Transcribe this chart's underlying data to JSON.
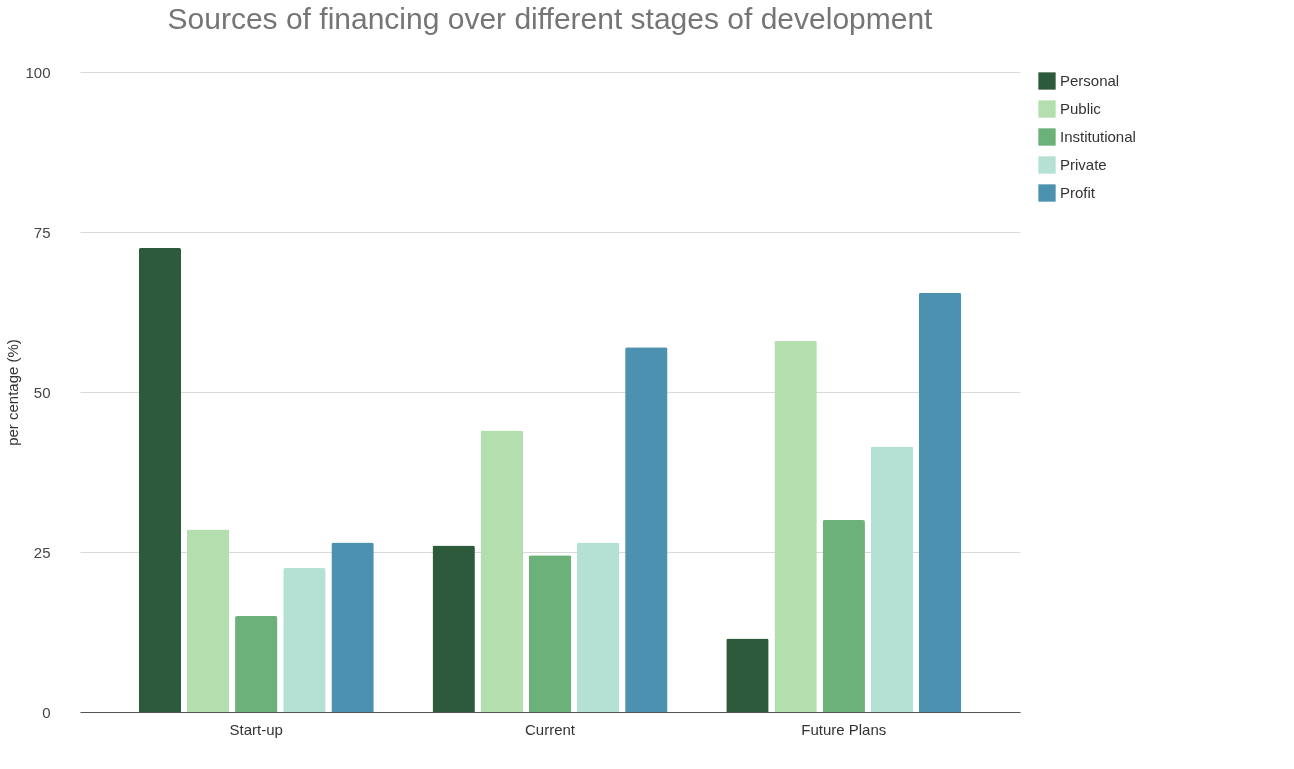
{
  "chart_data": {
    "type": "bar",
    "title": "Sources of financing over different stages of development",
    "ylabel": "per centage (%)",
    "categories": [
      "Start-up",
      "Current",
      "Future Plans"
    ],
    "series": [
      {
        "name": "Personal",
        "color": "#2d5a3a",
        "values": [
          72.5,
          26,
          11.5
        ]
      },
      {
        "name": "Public",
        "color": "#b3dfae",
        "values": [
          28.5,
          44,
          58
        ]
      },
      {
        "name": "Institutional",
        "color": "#6cb07a",
        "values": [
          15,
          24.5,
          30
        ]
      },
      {
        "name": "Private",
        "color": "#b5e0d4",
        "values": [
          22.5,
          26.5,
          41.5
        ]
      },
      {
        "name": "Profit",
        "color": "#4d91b0",
        "values": [
          26.5,
          57,
          65.5
        ]
      }
    ],
    "ylim": [
      0,
      100
    ],
    "yticks": [
      0,
      25,
      50,
      75,
      100
    ],
    "grid": "y",
    "legend": "right"
  }
}
